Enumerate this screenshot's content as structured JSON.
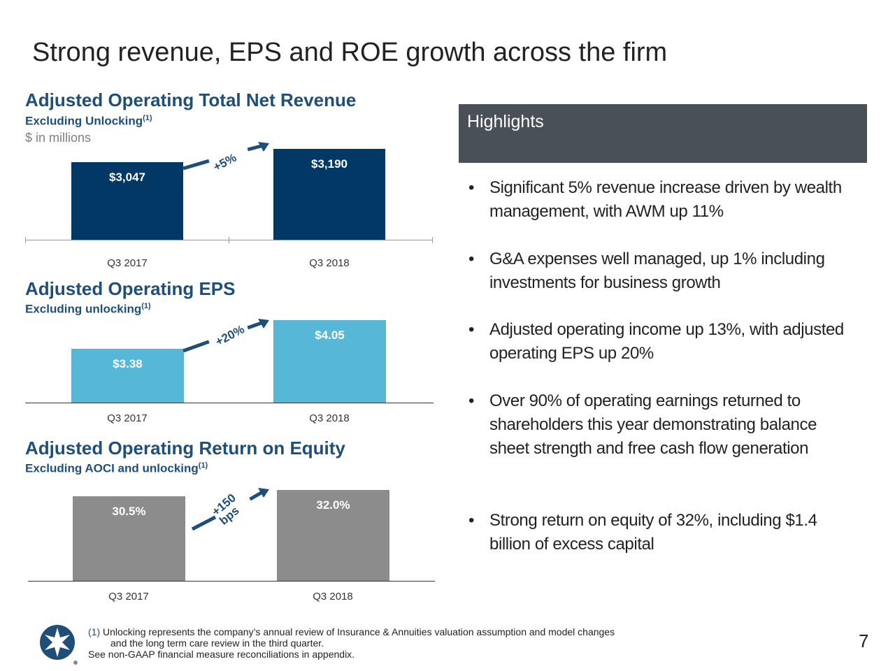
{
  "title": "Strong revenue, EPS and ROE growth across the firm",
  "colors": {
    "revenue": "#023865",
    "eps": "#56b8d6",
    "roe": "#8c8c8c",
    "heading": "#1f4e79",
    "highlights_bg": "#4a5058"
  },
  "chart_data": [
    {
      "type": "bar",
      "title": "Adjusted Operating Total Net Revenue",
      "subtitle": "Excluding Unlocking",
      "footnote_ref": "(1)",
      "units": "$ in millions",
      "categories": [
        "Q3 2017",
        "Q3 2018"
      ],
      "values": [
        3047,
        3190
      ],
      "data_labels": [
        "$3,047",
        "$3,190"
      ],
      "change_label": "+5%"
    },
    {
      "type": "bar",
      "title": "Adjusted Operating EPS",
      "subtitle": "Excluding unlocking",
      "footnote_ref": "(1)",
      "categories": [
        "Q3 2017",
        "Q3 2018"
      ],
      "values": [
        3.38,
        4.05
      ],
      "data_labels": [
        "$3.38",
        "$4.05"
      ],
      "change_label": "+20%"
    },
    {
      "type": "bar",
      "title": "Adjusted Operating Return on Equity",
      "subtitle": "Excluding AOCI and unlocking",
      "footnote_ref": "(1)",
      "categories": [
        "Q3 2017",
        "Q3 2018"
      ],
      "values": [
        30.5,
        32.0
      ],
      "data_labels": [
        "30.5%",
        "32.0%"
      ],
      "change_label": "+150 bps"
    }
  ],
  "highlights": {
    "heading": "Highlights",
    "bullet_char": "•",
    "items": [
      "Significant 5% revenue increase driven by wealth management, with AWM up 11%",
      "G&A expenses well managed, up 1% including investments for business growth",
      "Adjusted operating income up 13%, with adjusted operating EPS up 20%",
      "Over 90% of operating earnings returned to shareholders this year demonstrating balance sheet strength and free cash flow generation",
      "Strong return on equity of 32%, including $1.4 billion of excess capital"
    ]
  },
  "footnote": {
    "marker": "(1)",
    "line1": "Unlocking represents the company’s annual review of Insurance & Annuities valuation assumption and model changes",
    "line2": "and the long term care review in the third quarter.",
    "line3": "See non-GAAP financial measure reconciliations in appendix."
  },
  "page_number": "7"
}
